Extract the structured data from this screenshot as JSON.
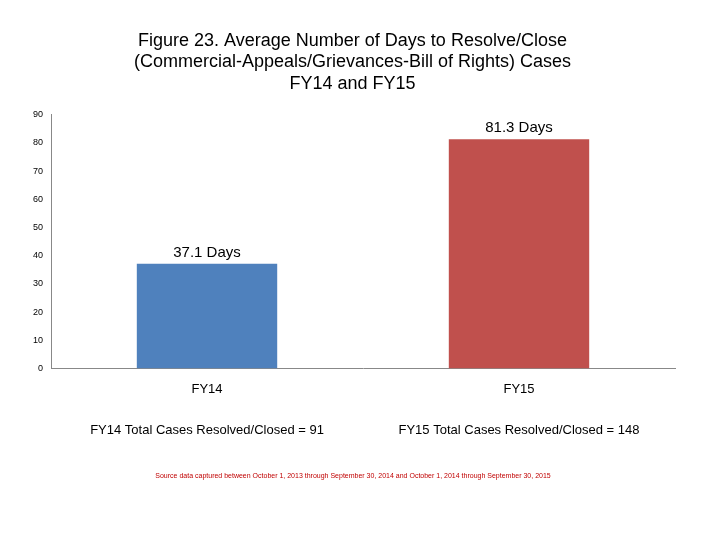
{
  "chart_data": {
    "type": "bar",
    "title": [
      "Figure 23. Average Number of Days to Resolve/Close",
      "(Commercial-Appeals/Grievances-Bill of Rights) Cases",
      "FY14 and FY15"
    ],
    "categories": [
      "FY14",
      "FY15"
    ],
    "values": [
      37.1,
      81.3
    ],
    "value_labels": [
      "37.1 Days",
      "81.3 Days"
    ],
    "colors": [
      "#4f81bd",
      "#c0504d"
    ],
    "ylim": [
      0,
      90
    ],
    "yticks": [
      0,
      10,
      20,
      30,
      40,
      50,
      60,
      70,
      80,
      90
    ],
    "grid": false,
    "data_labels": true,
    "annotations": [
      "FY14 Total Cases Resolved/Closed = 91",
      "FY15 Total Cases Resolved/Closed = 148"
    ],
    "source": "Source data captured between October 1, 2013 through September 30, 2014 and October 1, 2014 through September 30, 2015"
  }
}
